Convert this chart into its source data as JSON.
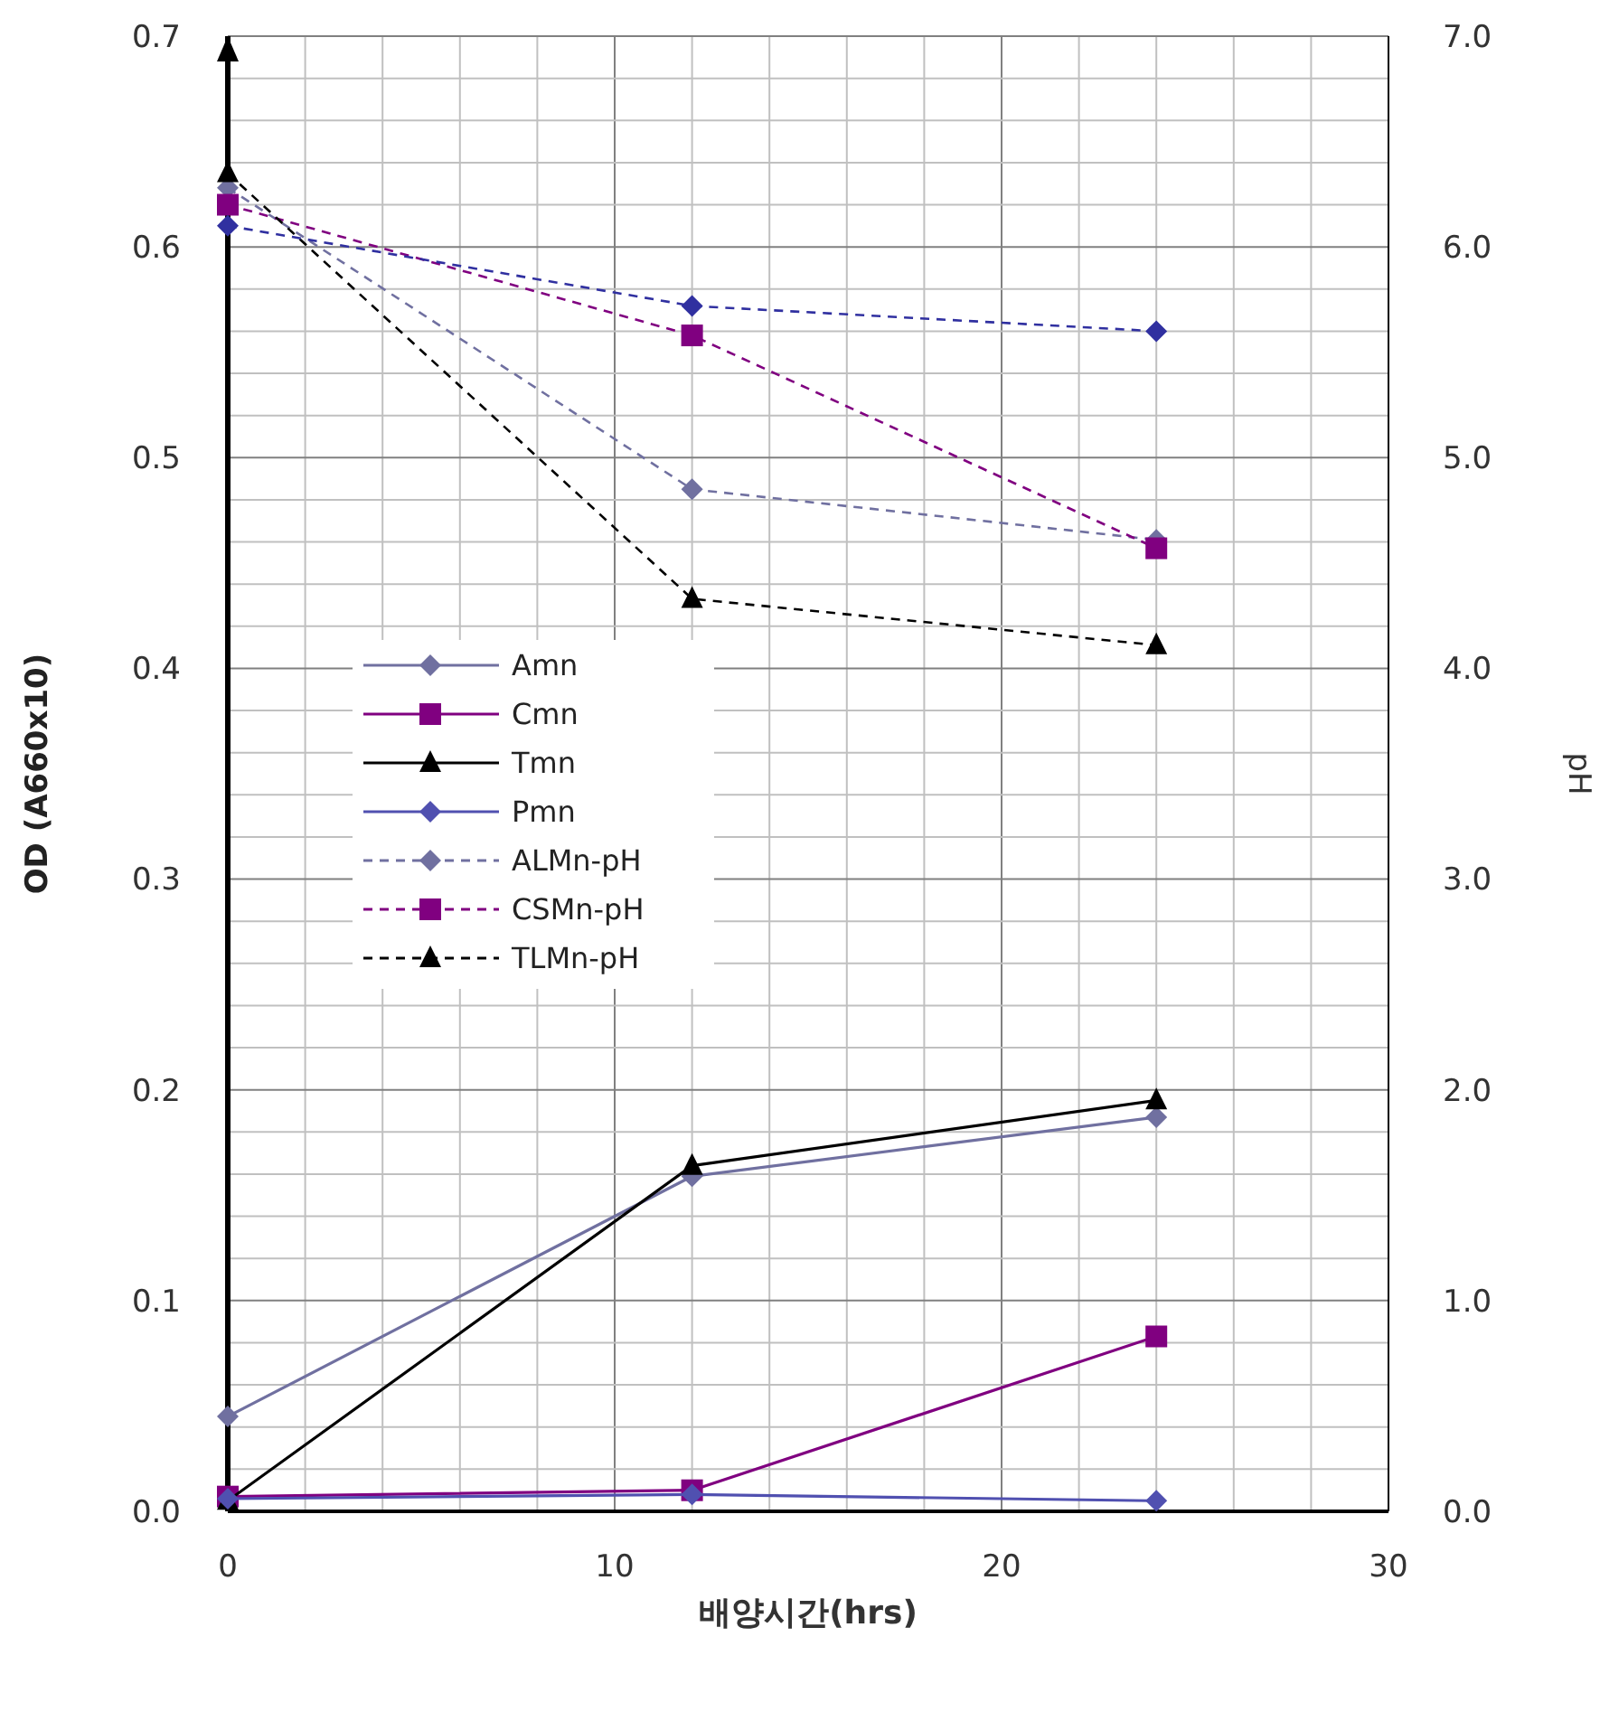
{
  "chart_data": {
    "type": "line",
    "xlabel": "배양시간(hrs)",
    "ylabel": "OD (A660x10)",
    "y2label": "pH",
    "xlim": [
      0,
      30
    ],
    "ylim": [
      0,
      0.7
    ],
    "y2lim": [
      0,
      7
    ],
    "xticks": [
      0,
      {
        "value": 2,
        "label": null
      },
      {
        "value": 4,
        "label": null
      },
      {
        "value": 6,
        "label": null
      },
      {
        "value": 8,
        "label": null
      },
      10,
      {
        "value": 12,
        "label": null
      },
      {
        "value": 14,
        "label": null
      },
      {
        "value": 16,
        "label": null
      },
      {
        "value": 18,
        "label": null
      },
      20,
      {
        "value": 22,
        "label": null
      },
      {
        "value": 24,
        "label": null
      },
      {
        "value": 26,
        "label": null
      },
      {
        "value": 28,
        "label": null
      },
      30
    ],
    "yticks": [
      {
        "value": 0,
        "label": "0.0"
      },
      {
        "value": 0.02,
        "label": null
      },
      {
        "value": 0.04,
        "label": null
      },
      {
        "value": 0.06,
        "label": null
      },
      {
        "value": 0.08,
        "label": null
      },
      0.1,
      {
        "value": 0.12,
        "label": null
      },
      {
        "value": 0.14,
        "label": null
      },
      {
        "value": 0.16,
        "label": null
      },
      {
        "value": 0.18,
        "label": null
      },
      0.2,
      {
        "value": 0.22,
        "label": null
      },
      {
        "value": 0.24,
        "label": null
      },
      {
        "value": 0.26,
        "label": null
      },
      {
        "value": 0.28,
        "label": null
      },
      0.3,
      {
        "value": 0.32,
        "label": null
      },
      {
        "value": 0.34,
        "label": null
      },
      {
        "value": 0.36,
        "label": null
      },
      {
        "value": 0.38,
        "label": null
      },
      0.4,
      {
        "value": 0.42,
        "label": null
      },
      {
        "value": 0.44,
        "label": null
      },
      {
        "value": 0.46,
        "label": null
      },
      {
        "value": 0.48,
        "label": null
      },
      0.5,
      {
        "value": 0.52,
        "label": null
      },
      {
        "value": 0.54,
        "label": null
      },
      {
        "value": 0.56,
        "label": null
      },
      {
        "value": 0.58,
        "label": null
      },
      0.6,
      {
        "value": 0.62,
        "label": null
      },
      {
        "value": 0.64,
        "label": null
      },
      {
        "value": 0.66,
        "label": null
      },
      {
        "value": 0.68,
        "label": null
      },
      0.7
    ],
    "y2ticks": [
      {
        "value": 0,
        "label": "0.0"
      },
      {
        "value": 1,
        "label": "1.0"
      },
      {
        "value": 2,
        "label": "2.0"
      },
      {
        "value": 3,
        "label": "3.0"
      },
      {
        "value": 4,
        "label": "4.0"
      },
      {
        "value": 5,
        "label": "5.0"
      },
      {
        "value": 6,
        "label": "6.0"
      },
      {
        "value": 7,
        "label": "7.0"
      }
    ],
    "grid": true,
    "legend": "left",
    "series": [
      {
        "name": "Amn",
        "color": "#7070a0",
        "x": [
          0,
          12,
          24
        ],
        "values": [
          0.045,
          0.159,
          0.187
        ],
        "marker": "diamond",
        "line_style": "solid"
      },
      {
        "name": "Cmn",
        "color": "#800080",
        "x": [
          0,
          12,
          24
        ],
        "values": [
          0.007,
          0.01,
          0.083
        ],
        "marker": "square",
        "line_style": "solid"
      },
      {
        "name": "Tmn",
        "color": "#000000",
        "x": [
          0,
          12,
          24
        ],
        "values": [
          0.005,
          0.164,
          0.195
        ],
        "marker": "triangle",
        "line_style": "solid"
      },
      {
        "name": "Pmn",
        "color": "#5050b0",
        "x": [
          0,
          12,
          24
        ],
        "values": [
          0.006,
          0.008,
          0.005
        ],
        "marker": "diamond",
        "line_style": "solid"
      },
      {
        "name": "ALMn-pH",
        "color": "#7070a0",
        "x": [
          0,
          12,
          24
        ],
        "values": [
          6.28,
          4.85,
          4.61
        ],
        "marker": "diamond",
        "line_style": "dashed",
        "axis": "y2"
      },
      {
        "name": "CSMn-pH",
        "color": "#800080",
        "x": [
          0,
          12,
          24
        ],
        "values": [
          6.2,
          5.58,
          4.57
        ],
        "marker": "square",
        "line_style": "dashed",
        "axis": "y2"
      },
      {
        "name": "TLMn-pH",
        "color": "#000000",
        "x": [
          0,
          12,
          24
        ],
        "values": [
          6.35,
          4.33,
          4.11
        ],
        "marker": "triangle",
        "line_style": "dashed",
        "axis": "y2"
      },
      {
        "color": "#3030a0",
        "x": [
          0,
          12,
          24
        ],
        "values": [
          6.1,
          5.72,
          5.6
        ],
        "marker": "diamond",
        "line_style": "dashed",
        "axis": "y2"
      }
    ]
  }
}
